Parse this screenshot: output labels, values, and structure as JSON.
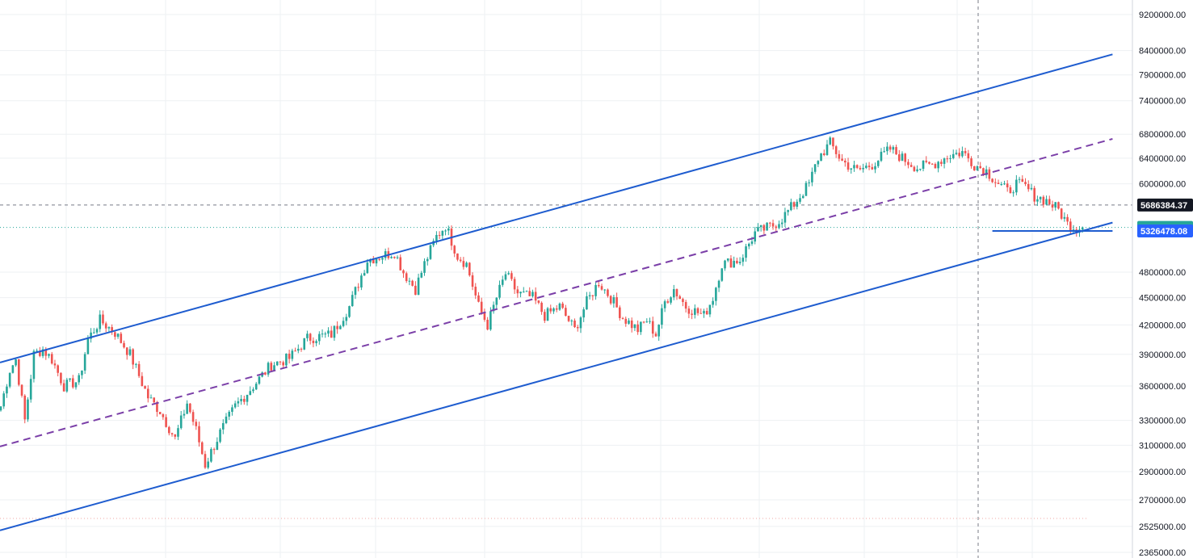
{
  "chart_data": {
    "type": "candlestick",
    "scale": "log",
    "grid": true,
    "ylim": [
      2365000,
      9200000
    ],
    "y_ticks": [
      9200000,
      8400000,
      7900000,
      7400000,
      6800000,
      6400000,
      6000000,
      4800000,
      4500000,
      4200000,
      3900000,
      3600000,
      3300000,
      3100000,
      2900000,
      2700000,
      2525000,
      2365000
    ],
    "y_tick_labels": [
      "9200000.00",
      "8400000.00",
      "7900000.00",
      "7400000.00",
      "6800000.00",
      "6400000.00",
      "6000000.00",
      "4800000.00",
      "4500000.00",
      "4200000.00",
      "3900000.00",
      "3600000.00",
      "3300000.00",
      "3100000.00",
      "2900000.00",
      "2700000.00",
      "2525000.00",
      "2365000.00"
    ],
    "price_badges": [
      {
        "label": "5686384.37",
        "value": 5686384.37,
        "color": "#131722"
      },
      {
        "label": "5374010.00",
        "value": 5374010.0,
        "color": "#26a69a"
      },
      {
        "label": "5326478.08",
        "value": 5326478.08,
        "color": "#2962ff"
      }
    ],
    "colors": {
      "up": "#26a69a",
      "down": "#ef5350",
      "channel": "#1e5ccf",
      "midline": "#7b3fa8",
      "grid": "#eef0f3",
      "crosshair": "#787b86"
    },
    "trend_lines": [
      {
        "id": "upper-channel",
        "style": "solid",
        "from": {
          "bar": 0,
          "price": 3820000
        },
        "to": {
          "bar": 370,
          "price": 8320000
        }
      },
      {
        "id": "mid-channel",
        "style": "dashed",
        "from": {
          "bar": 0,
          "price": 3090000
        },
        "to": {
          "bar": 370,
          "price": 6720000
        }
      },
      {
        "id": "lower-channel",
        "style": "solid",
        "from": {
          "bar": 0,
          "price": 2500000
        },
        "to": {
          "bar": 370,
          "price": 5440000
        }
      }
    ],
    "horizontal_level": {
      "price": 5326478.08,
      "from_bar": 330,
      "to_bar": 370
    },
    "anchors": [
      [
        0,
        3420000
      ],
      [
        3,
        3750000
      ],
      [
        5,
        3850000
      ],
      [
        8,
        3300000
      ],
      [
        11,
        3900000
      ],
      [
        14,
        3950000
      ],
      [
        17,
        3850000
      ],
      [
        21,
        3600000
      ],
      [
        26,
        3650000
      ],
      [
        29,
        4050000
      ],
      [
        33,
        4250000
      ],
      [
        38,
        4120000
      ],
      [
        43,
        3900000
      ],
      [
        49,
        3500000
      ],
      [
        53,
        3380000
      ],
      [
        58,
        3150000
      ],
      [
        62,
        3450000
      ],
      [
        65,
        3220000
      ],
      [
        68,
        2950000
      ],
      [
        73,
        3200000
      ],
      [
        78,
        3420000
      ],
      [
        84,
        3600000
      ],
      [
        90,
        3800000
      ],
      [
        96,
        3860000
      ],
      [
        102,
        4060000
      ],
      [
        110,
        4100000
      ],
      [
        116,
        4400000
      ],
      [
        122,
        4950000
      ],
      [
        131,
        5050000
      ],
      [
        134,
        4800000
      ],
      [
        138,
        4600000
      ],
      [
        141,
        4900000
      ],
      [
        145,
        5250000
      ],
      [
        148,
        5400000
      ],
      [
        152,
        5000000
      ],
      [
        155,
        4900000
      ],
      [
        159,
        4400000
      ],
      [
        162,
        4200000
      ],
      [
        165,
        4500000
      ],
      [
        168,
        4780000
      ],
      [
        172,
        4550000
      ],
      [
        177,
        4500000
      ],
      [
        181,
        4300000
      ],
      [
        186,
        4400000
      ],
      [
        191,
        4150000
      ],
      [
        195,
        4450000
      ],
      [
        199,
        4680000
      ],
      [
        203,
        4500000
      ],
      [
        207,
        4280000
      ],
      [
        212,
        4150000
      ],
      [
        215,
        4250000
      ],
      [
        218,
        4100000
      ],
      [
        221,
        4450000
      ],
      [
        224,
        4600000
      ],
      [
        228,
        4400000
      ],
      [
        234,
        4300000
      ],
      [
        237,
        4500000
      ],
      [
        240,
        4900000
      ],
      [
        246,
        4950000
      ],
      [
        251,
        5300000
      ],
      [
        257,
        5400000
      ],
      [
        260,
        5500000
      ],
      [
        264,
        5700000
      ],
      [
        269,
        6000000
      ],
      [
        272,
        6400000
      ],
      [
        276,
        6650000
      ],
      [
        280,
        6350000
      ],
      [
        285,
        6200000
      ],
      [
        290,
        6300000
      ],
      [
        296,
        6550000
      ],
      [
        300,
        6400000
      ],
      [
        305,
        6250000
      ],
      [
        310,
        6300000
      ],
      [
        316,
        6450000
      ],
      [
        320,
        6500000
      ],
      [
        324,
        6300000
      ],
      [
        328,
        6200000
      ],
      [
        331,
        6050000
      ],
      [
        335,
        5880000
      ],
      [
        338,
        6000000
      ],
      [
        341,
        5950000
      ],
      [
        344,
        5820000
      ],
      [
        348,
        5750000
      ],
      [
        352,
        5620000
      ],
      [
        355,
        5420000
      ],
      [
        358,
        5370000
      ],
      [
        360,
        5374010
      ]
    ]
  }
}
